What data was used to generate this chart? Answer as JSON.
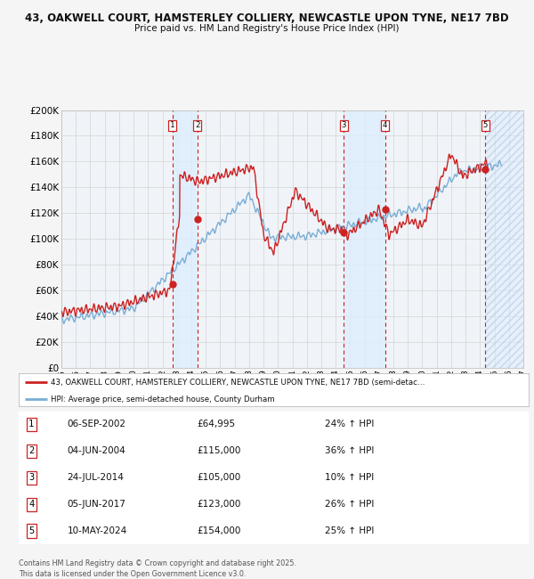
{
  "title1": "43, OAKWELL COURT, HAMSTERLEY COLLIERY, NEWCASTLE UPON TYNE, NE17 7BD",
  "title2": "Price paid vs. HM Land Registry's House Price Index (HPI)",
  "ylim": [
    0,
    200000
  ],
  "yticks": [
    0,
    20000,
    40000,
    60000,
    80000,
    100000,
    120000,
    140000,
    160000,
    180000,
    200000
  ],
  "ytick_labels": [
    "£0",
    "£20K",
    "£40K",
    "£60K",
    "£80K",
    "£100K",
    "£120K",
    "£140K",
    "£160K",
    "£180K",
    "£200K"
  ],
  "background_color": "#f5f5f5",
  "plot_bg_color": "#f0f4f8",
  "grid_color": "#cccccc",
  "hpi_line_color": "#7aaed6",
  "price_line_color": "#cc2222",
  "sale_marker_color": "#cc2222",
  "vline_color": "#cc2222",
  "vshade_color": "#ddeeff",
  "legend_box_color": "#cc2222",
  "transactions": [
    {
      "label": "1",
      "date": "2002-09-06",
      "price": 64995,
      "pct": "24%",
      "x_year": 2002.68
    },
    {
      "label": "2",
      "date": "2004-06-04",
      "price": 115000,
      "pct": "36%",
      "x_year": 2004.42
    },
    {
      "label": "3",
      "date": "2014-07-24",
      "price": 105000,
      "pct": "10%",
      "x_year": 2014.56
    },
    {
      "label": "4",
      "date": "2017-06-05",
      "price": 123000,
      "pct": "26%",
      "x_year": 2017.42
    },
    {
      "label": "5",
      "date": "2024-05-10",
      "price": 154000,
      "pct": "25%",
      "x_year": 2024.36
    }
  ],
  "table_rows": [
    [
      "1",
      "06-SEP-2002",
      "£64,995",
      "24% ↑ HPI"
    ],
    [
      "2",
      "04-JUN-2004",
      "£115,000",
      "36% ↑ HPI"
    ],
    [
      "3",
      "24-JUL-2014",
      "£105,000",
      "10% ↑ HPI"
    ],
    [
      "4",
      "05-JUN-2017",
      "£123,000",
      "26% ↑ HPI"
    ],
    [
      "5",
      "10-MAY-2024",
      "£154,000",
      "25% ↑ HPI"
    ]
  ],
  "legend_line1": "43, OAKWELL COURT, HAMSTERLEY COLLIERY, NEWCASTLE UPON TYNE, NE17 7BD (semi-detac…",
  "legend_line2": "HPI: Average price, semi-detached house, County Durham",
  "footer": "Contains HM Land Registry data © Crown copyright and database right 2025.\nThis data is licensed under the Open Government Licence v3.0.",
  "xmin": 1995.0,
  "xmax": 2027.0,
  "future_start": 2024.36,
  "xtick_years": [
    1995,
    1996,
    1997,
    1998,
    1999,
    2000,
    2001,
    2002,
    2003,
    2004,
    2005,
    2006,
    2007,
    2008,
    2009,
    2010,
    2011,
    2012,
    2013,
    2014,
    2015,
    2016,
    2017,
    2018,
    2019,
    2020,
    2021,
    2022,
    2023,
    2024,
    2025,
    2026,
    2027
  ]
}
